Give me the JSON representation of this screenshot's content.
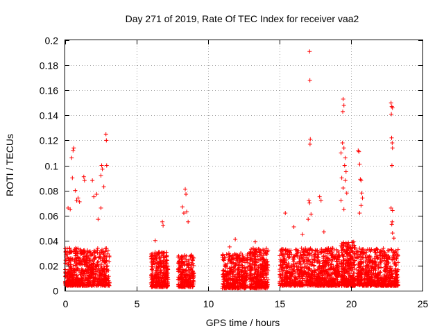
{
  "chart_data": {
    "type": "scatter",
    "title": "Day 271 of 2019, Rate Of TEC Index for receiver vaa2",
    "xlabel": "GPS time / hours",
    "ylabel": "ROTI / TECUs",
    "xlim": [
      0,
      25
    ],
    "ylim": [
      0,
      0.2
    ],
    "xticks": [
      0,
      5,
      10,
      15,
      20,
      25
    ],
    "xtick_labels": [
      "0",
      "5",
      "10",
      "15",
      "20",
      "25"
    ],
    "yticks": [
      0,
      0.02,
      0.04,
      0.06,
      0.08,
      0.1,
      0.12,
      0.14,
      0.16,
      0.18,
      0.2
    ],
    "ytick_labels": [
      "0",
      "0.02",
      "0.04",
      "0.06",
      "0.08",
      "0.1",
      "0.12",
      "0.14",
      "0.16",
      "0.18",
      "0.2"
    ],
    "grid": true,
    "marker": "+",
    "series_color": "#ff0000",
    "series": [
      {
        "name": "ROTI",
        "clusters": [
          {
            "x_start": 0.0,
            "x_end": 3.1,
            "y_base": 0.004,
            "y_spread": 0.03,
            "count": 700
          },
          {
            "x_start": 6.0,
            "x_end": 7.2,
            "y_base": 0.003,
            "y_spread": 0.028,
            "count": 320
          },
          {
            "x_start": 7.9,
            "x_end": 9.0,
            "y_base": 0.003,
            "y_spread": 0.026,
            "count": 260
          },
          {
            "x_start": 11.0,
            "x_end": 12.8,
            "y_base": 0.002,
            "y_spread": 0.028,
            "count": 380
          },
          {
            "x_start": 12.9,
            "x_end": 14.2,
            "y_base": 0.002,
            "y_spread": 0.032,
            "count": 360
          },
          {
            "x_start": 15.0,
            "x_end": 19.2,
            "y_base": 0.004,
            "y_spread": 0.03,
            "count": 900
          },
          {
            "x_start": 19.3,
            "x_end": 20.3,
            "y_base": 0.004,
            "y_spread": 0.035,
            "count": 320
          },
          {
            "x_start": 20.4,
            "x_end": 23.3,
            "y_base": 0.004,
            "y_spread": 0.03,
            "count": 650
          }
        ],
        "peaks": [
          {
            "x": 0.2,
            "y": 0.066
          },
          {
            "x": 0.35,
            "y": 0.065
          },
          {
            "x": 0.45,
            "y": 0.106
          },
          {
            "x": 0.55,
            "y": 0.112
          },
          {
            "x": 0.6,
            "y": 0.114
          },
          {
            "x": 0.5,
            "y": 0.09
          },
          {
            "x": 0.7,
            "y": 0.08
          },
          {
            "x": 0.8,
            "y": 0.072
          },
          {
            "x": 0.9,
            "y": 0.074
          },
          {
            "x": 1.0,
            "y": 0.071
          },
          {
            "x": 1.3,
            "y": 0.091
          },
          {
            "x": 1.35,
            "y": 0.088
          },
          {
            "x": 1.9,
            "y": 0.088
          },
          {
            "x": 2.0,
            "y": 0.075
          },
          {
            "x": 2.2,
            "y": 0.077
          },
          {
            "x": 2.5,
            "y": 0.092
          },
          {
            "x": 2.55,
            "y": 0.1
          },
          {
            "x": 2.6,
            "y": 0.097
          },
          {
            "x": 2.7,
            "y": 0.083
          },
          {
            "x": 2.85,
            "y": 0.125
          },
          {
            "x": 2.88,
            "y": 0.12
          },
          {
            "x": 2.9,
            "y": 0.1
          },
          {
            "x": 2.5,
            "y": 0.066
          },
          {
            "x": 2.3,
            "y": 0.057
          },
          {
            "x": 6.8,
            "y": 0.055
          },
          {
            "x": 6.85,
            "y": 0.052
          },
          {
            "x": 6.3,
            "y": 0.04
          },
          {
            "x": 8.4,
            "y": 0.081
          },
          {
            "x": 8.45,
            "y": 0.077
          },
          {
            "x": 8.2,
            "y": 0.067
          },
          {
            "x": 8.3,
            "y": 0.062
          },
          {
            "x": 8.5,
            "y": 0.063
          },
          {
            "x": 8.6,
            "y": 0.055
          },
          {
            "x": 11.9,
            "y": 0.041
          },
          {
            "x": 11.5,
            "y": 0.035
          },
          {
            "x": 13.3,
            "y": 0.039
          },
          {
            "x": 15.4,
            "y": 0.062
          },
          {
            "x": 16.0,
            "y": 0.051
          },
          {
            "x": 17.1,
            "y": 0.191
          },
          {
            "x": 17.12,
            "y": 0.168
          },
          {
            "x": 17.15,
            "y": 0.121
          },
          {
            "x": 17.13,
            "y": 0.117
          },
          {
            "x": 17.05,
            "y": 0.072
          },
          {
            "x": 17.1,
            "y": 0.07
          },
          {
            "x": 17.2,
            "y": 0.061
          },
          {
            "x": 17.0,
            "y": 0.057
          },
          {
            "x": 17.8,
            "y": 0.075
          },
          {
            "x": 17.9,
            "y": 0.072
          },
          {
            "x": 16.6,
            "y": 0.045
          },
          {
            "x": 18.1,
            "y": 0.047
          },
          {
            "x": 19.3,
            "y": 0.11
          },
          {
            "x": 19.4,
            "y": 0.118
          },
          {
            "x": 19.45,
            "y": 0.153
          },
          {
            "x": 19.5,
            "y": 0.148
          },
          {
            "x": 19.42,
            "y": 0.143
          },
          {
            "x": 19.5,
            "y": 0.114
          },
          {
            "x": 19.6,
            "y": 0.106
          },
          {
            "x": 19.55,
            "y": 0.1
          },
          {
            "x": 19.65,
            "y": 0.095
          },
          {
            "x": 19.35,
            "y": 0.09
          },
          {
            "x": 19.6,
            "y": 0.088
          },
          {
            "x": 19.45,
            "y": 0.082
          },
          {
            "x": 19.7,
            "y": 0.078
          },
          {
            "x": 19.3,
            "y": 0.072
          },
          {
            "x": 19.5,
            "y": 0.065
          },
          {
            "x": 20.5,
            "y": 0.112
          },
          {
            "x": 20.55,
            "y": 0.111
          },
          {
            "x": 20.6,
            "y": 0.101
          },
          {
            "x": 20.65,
            "y": 0.089
          },
          {
            "x": 20.7,
            "y": 0.088
          },
          {
            "x": 20.75,
            "y": 0.078
          },
          {
            "x": 20.8,
            "y": 0.074
          },
          {
            "x": 20.7,
            "y": 0.068
          },
          {
            "x": 20.6,
            "y": 0.062
          },
          {
            "x": 22.8,
            "y": 0.15
          },
          {
            "x": 22.85,
            "y": 0.147
          },
          {
            "x": 22.9,
            "y": 0.146
          },
          {
            "x": 22.82,
            "y": 0.141
          },
          {
            "x": 22.84,
            "y": 0.122
          },
          {
            "x": 22.88,
            "y": 0.118
          },
          {
            "x": 22.9,
            "y": 0.114
          },
          {
            "x": 22.86,
            "y": 0.1
          },
          {
            "x": 22.8,
            "y": 0.066
          },
          {
            "x": 22.9,
            "y": 0.064
          },
          {
            "x": 22.88,
            "y": 0.055
          },
          {
            "x": 22.85,
            "y": 0.053
          },
          {
            "x": 22.9,
            "y": 0.046
          },
          {
            "x": 23.0,
            "y": 0.042
          }
        ]
      }
    ]
  }
}
